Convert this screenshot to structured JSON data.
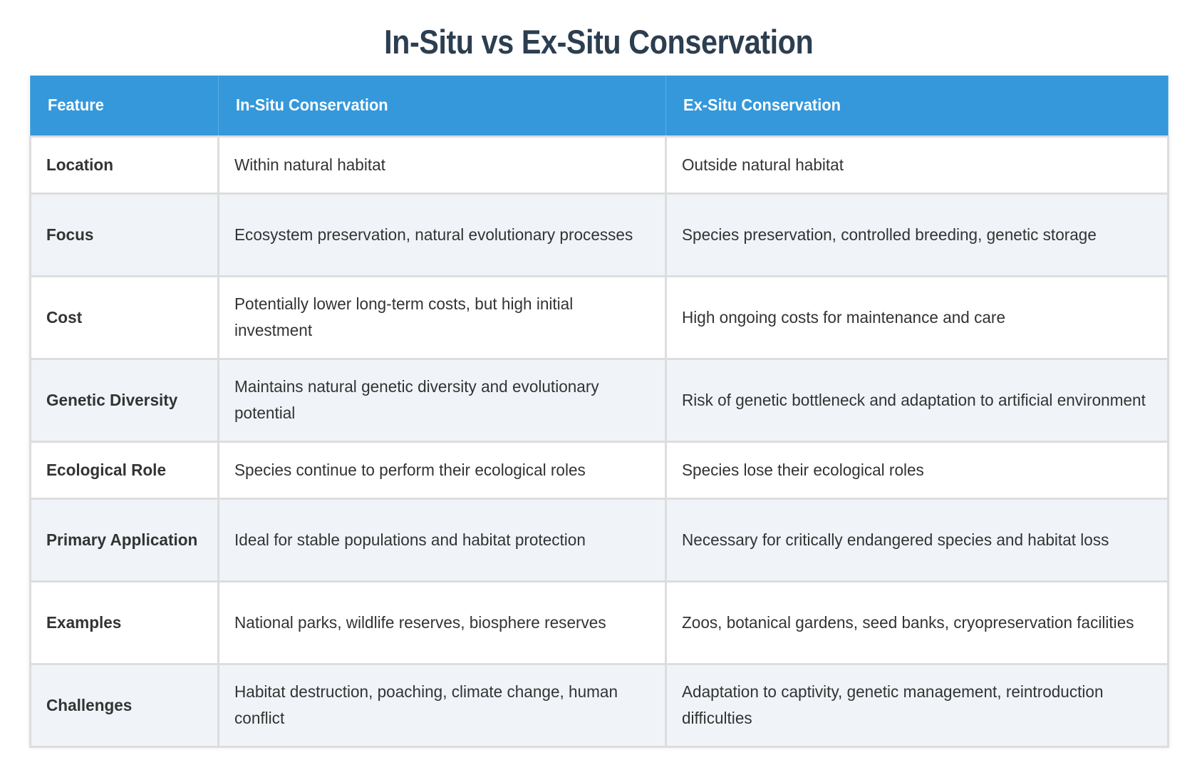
{
  "page": {
    "title": "In-Situ vs Ex-Situ Conservation"
  },
  "colors": {
    "title": "#2c3e50",
    "header_bg": "#3498db",
    "header_text": "#ffffff",
    "row_alt_bg": "#f0f4f9",
    "border": "#dddddd",
    "body_text": "#333333"
  },
  "table": {
    "headers": [
      "Feature",
      "In-Situ Conservation",
      "Ex-Situ Conservation"
    ],
    "rows": [
      {
        "feature": "Location",
        "in_situ": "Within natural habitat",
        "ex_situ": "Outside natural habitat"
      },
      {
        "feature": "Focus",
        "in_situ": "Ecosystem preservation, natural evolutionary processes",
        "ex_situ": "Species preservation, controlled breeding, genetic storage"
      },
      {
        "feature": "Cost",
        "in_situ": "Potentially lower long-term costs, but high initial investment",
        "ex_situ": "High ongoing costs for maintenance and care"
      },
      {
        "feature": "Genetic Diversity",
        "in_situ": "Maintains natural genetic diversity and evolutionary potential",
        "ex_situ": "Risk of genetic bottleneck and adaptation to artificial environment"
      },
      {
        "feature": "Ecological Role",
        "in_situ": "Species continue to perform their ecological roles",
        "ex_situ": "Species lose their ecological roles"
      },
      {
        "feature": "Primary Application",
        "in_situ": "Ideal for stable populations and habitat protection",
        "ex_situ": "Necessary for critically endangered species and habitat loss"
      },
      {
        "feature": "Examples",
        "in_situ": "National parks, wildlife reserves, biosphere reserves",
        "ex_situ": "Zoos, botanical gardens, seed banks, cryopreservation facilities"
      },
      {
        "feature": "Challenges",
        "in_situ": "Habitat destruction, poaching, climate change, human conflict",
        "ex_situ": "Adaptation to captivity, genetic management, reintroduction difficulties"
      }
    ]
  }
}
